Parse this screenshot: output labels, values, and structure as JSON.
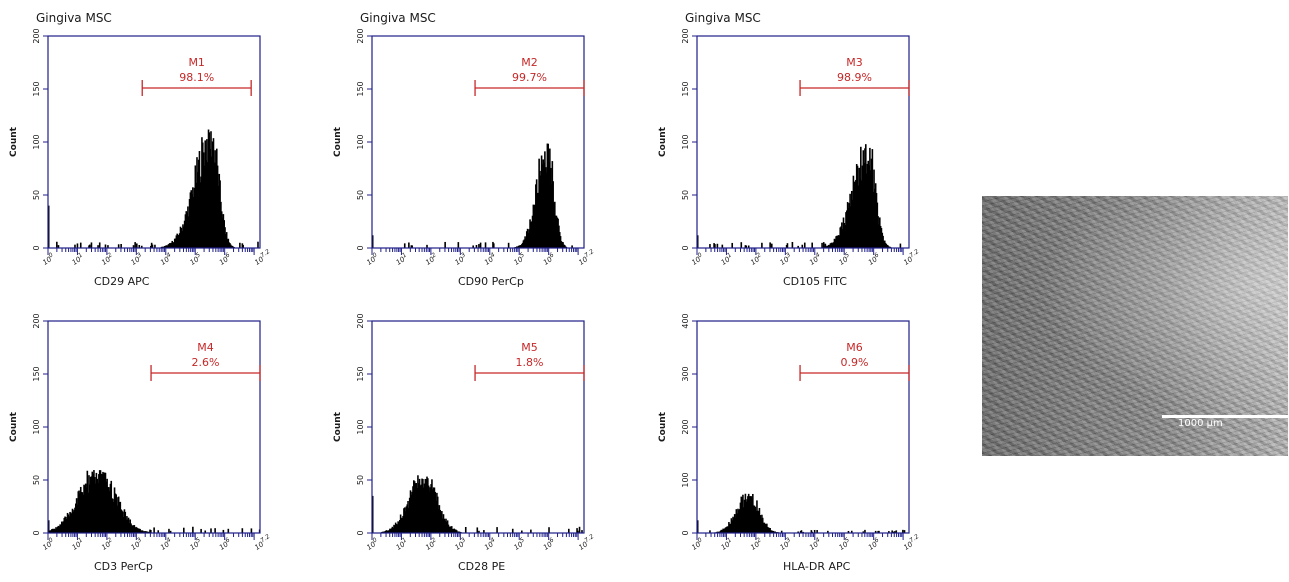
{
  "chart_data": [
    {
      "type": "histogram",
      "title": "Gingiva MSC",
      "xlabel": "CD29 APC",
      "ylabel": "Count",
      "xscale": "log",
      "xlim": [
        0,
        7.2
      ],
      "ylim": [
        0,
        200
      ],
      "yticks": [
        0,
        50,
        100,
        150,
        200
      ],
      "xticks": [
        "10^0",
        "10^1",
        "10^2",
        "10^3",
        "10^4",
        "10^5",
        "10^6",
        "10^7.2"
      ],
      "gate": {
        "name": "M1",
        "percent": "98.1%",
        "range": [
          3.2,
          6.9
        ]
      },
      "peak": {
        "center": 5.55,
        "height": 112,
        "left_width": 0.55,
        "right_width": 0.25
      },
      "color": "#000000"
    },
    {
      "type": "histogram",
      "title": "Gingiva MSC",
      "xlabel": "CD90 PerCp",
      "ylabel": "Count",
      "xscale": "log",
      "xlim": [
        0,
        7.2
      ],
      "ylim": [
        0,
        200
      ],
      "yticks": [
        0,
        50,
        100,
        150,
        200
      ],
      "xticks": [
        "10^0",
        "10^1",
        "10^2",
        "10^3",
        "10^4",
        "10^5",
        "10^6",
        "10^7.2"
      ],
      "gate": {
        "name": "M2",
        "percent": "99.7%",
        "range": [
          3.5,
          7.2
        ]
      },
      "peak": {
        "center": 5.95,
        "height": 100,
        "left_width": 0.35,
        "right_width": 0.22
      },
      "color": "#000000"
    },
    {
      "type": "histogram",
      "title": "Gingiva MSC",
      "xlabel": "CD105 FITC",
      "ylabel": "Count",
      "xscale": "log",
      "xlim": [
        0,
        7.2
      ],
      "ylim": [
        0,
        200
      ],
      "yticks": [
        0,
        50,
        100,
        150,
        200
      ],
      "xticks": [
        "10^0",
        "10^1",
        "10^2",
        "10^3",
        "10^4",
        "10^5",
        "10^6",
        "10^7.2"
      ],
      "gate": {
        "name": "M3",
        "percent": "98.9%",
        "range": [
          3.5,
          7.2
        ]
      },
      "peak": {
        "center": 5.8,
        "height": 99,
        "left_width": 0.5,
        "right_width": 0.25
      },
      "color": "#000000"
    },
    {
      "type": "histogram",
      "title": "",
      "xlabel": "CD3 PerCp",
      "ylabel": "Count",
      "xscale": "log",
      "xlim": [
        0,
        7.2
      ],
      "ylim": [
        0,
        200
      ],
      "yticks": [
        0,
        50,
        100,
        150,
        200
      ],
      "xticks": [
        "10^0",
        "10^1",
        "10^2",
        "10^3",
        "10^4",
        "10^5",
        "10^6",
        "10^7.2"
      ],
      "gate": {
        "name": "M4",
        "percent": "2.6%",
        "range": [
          3.5,
          7.2
        ]
      },
      "peak": {
        "center": 1.7,
        "height": 60,
        "left_width": 0.65,
        "right_width": 0.6
      },
      "color": "#000000"
    },
    {
      "type": "histogram",
      "title": "",
      "xlabel": "CD28 PE",
      "ylabel": "Count",
      "xscale": "log",
      "xlim": [
        0,
        7.2
      ],
      "ylim": [
        0,
        200
      ],
      "yticks": [
        0,
        50,
        100,
        150,
        200
      ],
      "xticks": [
        "10^0",
        "10^1",
        "10^2",
        "10^3",
        "10^4",
        "10^5",
        "10^6",
        "10^7.2"
      ],
      "gate": {
        "name": "M5",
        "percent": "1.8%",
        "range": [
          3.5,
          7.2
        ]
      },
      "peak": {
        "center": 1.75,
        "height": 55,
        "left_width": 0.5,
        "right_width": 0.45
      },
      "color": "#000000"
    },
    {
      "type": "histogram",
      "title": "",
      "xlabel": "HLA-DR APC",
      "ylabel": "Count",
      "xscale": "log",
      "xlim": [
        0,
        7.2
      ],
      "ylim": [
        0,
        400
      ],
      "yticks": [
        0,
        100,
        200,
        300,
        400
      ],
      "xticks": [
        "10^0",
        "10^1",
        "10^2",
        "10^3",
        "10^4",
        "10^5",
        "10^6",
        "10^7.2"
      ],
      "gate": {
        "name": "M6",
        "percent": "0.9%",
        "range": [
          3.5,
          7.2
        ]
      },
      "peak": {
        "center": 1.75,
        "height": 75,
        "left_width": 0.4,
        "right_width": 0.35
      },
      "color": "#000000"
    }
  ],
  "micrograph": {
    "scale_label": "1000 μm"
  },
  "colors": {
    "axis": "#1f1f8a",
    "gate": "#c62828",
    "bars": "#000000",
    "tick": "#1f1f8a"
  }
}
